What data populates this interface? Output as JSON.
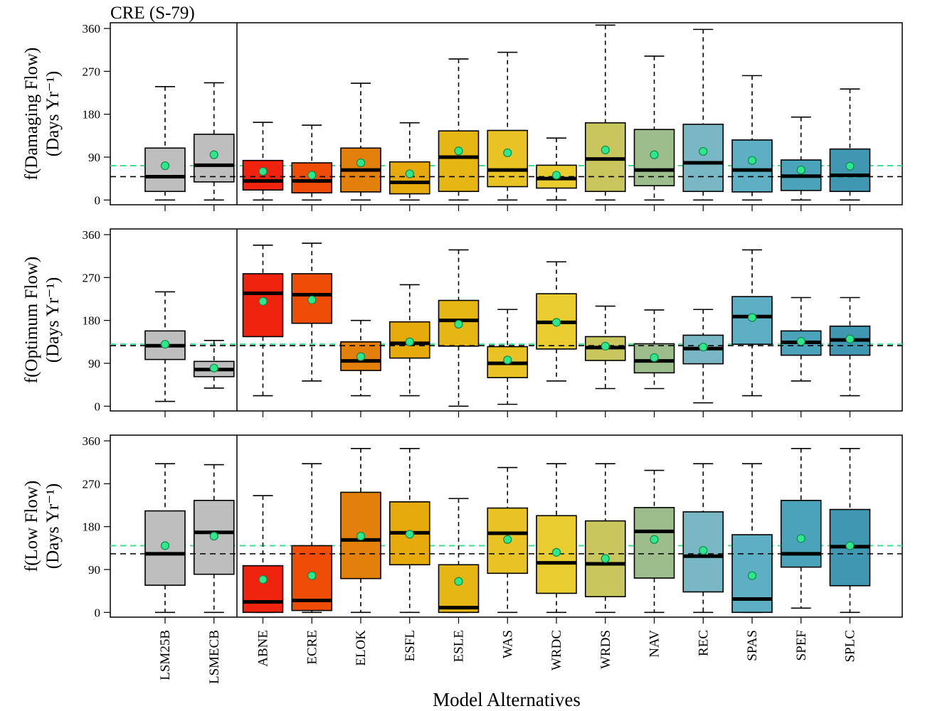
{
  "page_title": "CRE (S-79)",
  "x_axis_label": "Model Alternatives",
  "y_ticks": [
    0,
    90,
    180,
    270,
    360
  ],
  "colors": {
    "LSM25B": "#bebebe",
    "LSMECB": "#bebebe",
    "ABNE": "#f0240e",
    "ECRE": "#ef4c08",
    "ELOK": "#e3800b",
    "ESFL": "#e7aa0c",
    "ESLE": "#e6b714",
    "WAS": "#e9c223",
    "WRDC": "#e9cc2f",
    "WRDS": "#c9c65d",
    "NAV": "#9dbd8d",
    "REC": "#79b7c5",
    "SPAS": "#5eaec4",
    "SPEF": "#4aa3bb",
    "SPLC": "#3f97b1",
    "mean_point": "#2fe88b",
    "mean_point_stroke": "#0b8a4f",
    "ref_green_line": "#36e08f",
    "ref_black_line": "#000000"
  },
  "chart_data": [
    {
      "type": "boxplot",
      "title": "CRE (S-79)",
      "ylabel_line1": "f(Damaging Flow)",
      "ylabel_line2": "(Days Yr⁻¹)",
      "xlabel": "",
      "ylim": [
        -10,
        372
      ],
      "categories": [
        "LSM25B",
        "LSMECB",
        "ABNE",
        "ECRE",
        "ELOK",
        "ESFL",
        "ESLE",
        "WAS",
        "WRDC",
        "WRDS",
        "NAV",
        "REC",
        "SPAS",
        "SPEF",
        "SPLC"
      ],
      "boxes": [
        {
          "min": 0,
          "q1": 18,
          "median": 49,
          "q3": 109,
          "max": 238,
          "mean": 72
        },
        {
          "min": 0,
          "q1": 38,
          "median": 73,
          "q3": 138,
          "max": 246,
          "mean": 95
        },
        {
          "min": 0,
          "q1": 21,
          "median": 40,
          "q3": 83,
          "max": 163,
          "mean": 60
        },
        {
          "min": 0,
          "q1": 15,
          "median": 40,
          "q3": 78,
          "max": 157,
          "mean": 52
        },
        {
          "min": 0,
          "q1": 17,
          "median": 63,
          "q3": 109,
          "max": 245,
          "mean": 78
        },
        {
          "min": 0,
          "q1": 13,
          "median": 37,
          "q3": 80,
          "max": 162,
          "mean": 55
        },
        {
          "min": 0,
          "q1": 18,
          "median": 90,
          "q3": 145,
          "max": 296,
          "mean": 103
        },
        {
          "min": 0,
          "q1": 28,
          "median": 63,
          "q3": 146,
          "max": 310,
          "mean": 99
        },
        {
          "min": 0,
          "q1": 25,
          "median": 45,
          "q3": 73,
          "max": 130,
          "mean": 52
        },
        {
          "min": 0,
          "q1": 18,
          "median": 86,
          "q3": 162,
          "max": 367,
          "mean": 105
        },
        {
          "min": 0,
          "q1": 30,
          "median": 63,
          "q3": 148,
          "max": 302,
          "mean": 95
        },
        {
          "min": 0,
          "q1": 18,
          "median": 78,
          "q3": 159,
          "max": 358,
          "mean": 102
        },
        {
          "min": 0,
          "q1": 17,
          "median": 63,
          "q3": 126,
          "max": 261,
          "mean": 83
        },
        {
          "min": 0,
          "q1": 20,
          "median": 50,
          "q3": 84,
          "max": 174,
          "mean": 63
        },
        {
          "min": 0,
          "q1": 18,
          "median": 52,
          "q3": 107,
          "max": 233,
          "mean": 71
        }
      ],
      "ref_green": 72,
      "ref_black": 49
    },
    {
      "type": "boxplot",
      "title": "",
      "ylabel_line1": "f(Optimum Flow)",
      "ylabel_line2": "(Days Yr⁻¹)",
      "xlabel": "",
      "ylim": [
        -10,
        372
      ],
      "categories": [
        "LSM25B",
        "LSMECB",
        "ABNE",
        "ECRE",
        "ELOK",
        "ESFL",
        "ESLE",
        "WAS",
        "WRDC",
        "WRDS",
        "NAV",
        "REC",
        "SPAS",
        "SPEF",
        "SPLC"
      ],
      "boxes": [
        {
          "min": 10,
          "q1": 98,
          "median": 127,
          "q3": 158,
          "max": 240,
          "mean": 130
        },
        {
          "min": 38,
          "q1": 62,
          "median": 77,
          "q3": 94,
          "max": 138,
          "mean": 80
        },
        {
          "min": 22,
          "q1": 146,
          "median": 237,
          "q3": 278,
          "max": 338,
          "mean": 220
        },
        {
          "min": 53,
          "q1": 174,
          "median": 234,
          "q3": 278,
          "max": 342,
          "mean": 223
        },
        {
          "min": 22,
          "q1": 75,
          "median": 95,
          "q3": 135,
          "max": 180,
          "mean": 104
        },
        {
          "min": 22,
          "q1": 101,
          "median": 132,
          "q3": 177,
          "max": 255,
          "mean": 135
        },
        {
          "min": 0,
          "q1": 126,
          "median": 180,
          "q3": 222,
          "max": 328,
          "mean": 172
        },
        {
          "min": 4,
          "q1": 60,
          "median": 90,
          "q3": 125,
          "max": 203,
          "mean": 97
        },
        {
          "min": 53,
          "q1": 120,
          "median": 176,
          "q3": 236,
          "max": 303,
          "mean": 176
        },
        {
          "min": 37,
          "q1": 96,
          "median": 123,
          "q3": 146,
          "max": 210,
          "mean": 126
        },
        {
          "min": 37,
          "q1": 70,
          "median": 95,
          "q3": 131,
          "max": 202,
          "mean": 102
        },
        {
          "min": 7,
          "q1": 89,
          "median": 121,
          "q3": 149,
          "max": 203,
          "mean": 124
        },
        {
          "min": 22,
          "q1": 130,
          "median": 188,
          "q3": 230,
          "max": 328,
          "mean": 186
        },
        {
          "min": 53,
          "q1": 107,
          "median": 134,
          "q3": 158,
          "max": 228,
          "mean": 136
        },
        {
          "min": 22,
          "q1": 107,
          "median": 139,
          "q3": 168,
          "max": 228,
          "mean": 141
        }
      ],
      "ref_green": 130,
      "ref_black": 127
    },
    {
      "type": "boxplot",
      "title": "",
      "ylabel_line1": "f(Low Flow)",
      "ylabel_line2": "(Days Yr⁻¹)",
      "xlabel": "Model Alternatives",
      "ylim": [
        -10,
        372
      ],
      "categories": [
        "LSM25B",
        "LSMECB",
        "ABNE",
        "ECRE",
        "ELOK",
        "ESFL",
        "ESLE",
        "WAS",
        "WRDC",
        "WRDS",
        "NAV",
        "REC",
        "SPAS",
        "SPEF",
        "SPLC"
      ],
      "boxes": [
        {
          "min": 0,
          "q1": 57,
          "median": 123,
          "q3": 213,
          "max": 312,
          "mean": 140
        },
        {
          "min": 0,
          "q1": 80,
          "median": 168,
          "q3": 235,
          "max": 310,
          "mean": 160
        },
        {
          "min": 0,
          "q1": 0,
          "median": 22,
          "q3": 98,
          "max": 245,
          "mean": 69
        },
        {
          "min": 0,
          "q1": 4,
          "median": 25,
          "q3": 140,
          "max": 312,
          "mean": 77
        },
        {
          "min": 0,
          "q1": 71,
          "median": 152,
          "q3": 252,
          "max": 344,
          "mean": 160
        },
        {
          "min": 0,
          "q1": 100,
          "median": 167,
          "q3": 232,
          "max": 344,
          "mean": 164
        },
        {
          "min": 0,
          "q1": 0,
          "median": 10,
          "q3": 100,
          "max": 239,
          "mean": 65
        },
        {
          "min": 0,
          "q1": 82,
          "median": 166,
          "q3": 219,
          "max": 304,
          "mean": 153
        },
        {
          "min": 0,
          "q1": 40,
          "median": 104,
          "q3": 203,
          "max": 312,
          "mean": 126
        },
        {
          "min": 0,
          "q1": 33,
          "median": 102,
          "q3": 192,
          "max": 312,
          "mean": 113
        },
        {
          "min": 0,
          "q1": 72,
          "median": 170,
          "q3": 220,
          "max": 298,
          "mean": 153
        },
        {
          "min": 0,
          "q1": 43,
          "median": 118,
          "q3": 211,
          "max": 312,
          "mean": 130
        },
        {
          "min": 0,
          "q1": 0,
          "median": 28,
          "q3": 163,
          "max": 312,
          "mean": 77
        },
        {
          "min": 9,
          "q1": 95,
          "median": 123,
          "q3": 235,
          "max": 344,
          "mean": 155
        },
        {
          "min": 0,
          "q1": 56,
          "median": 138,
          "q3": 216,
          "max": 344,
          "mean": 140
        }
      ],
      "ref_green": 140,
      "ref_black": 123
    }
  ]
}
